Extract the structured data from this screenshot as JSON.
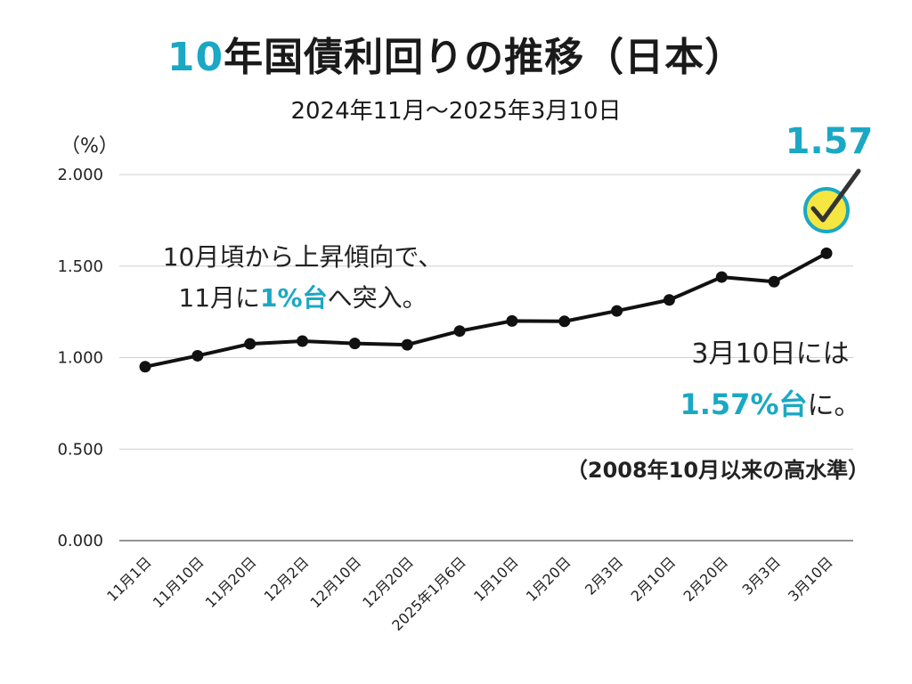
{
  "title": {
    "accent": "10",
    "rest": "年国債利回りの推移（日本）"
  },
  "subtitle": "2024年11月～2025年3月10日",
  "unit_label": "（%）",
  "callouts": {
    "trend_line1": "10月頃から上昇傾向で、",
    "trend_line2_pre": "11月に",
    "trend_line2_hl": "1%台",
    "trend_line2_post": "へ突入。",
    "latest_line1": "3月10日には",
    "latest_hl": "1.57%台",
    "latest_post": "に。",
    "record": "（2008年10月以来の高水準）",
    "peak_value": "1.57"
  },
  "colors": {
    "accent": "#1aa8c4",
    "line": "#111111",
    "badge": "#f5e642"
  },
  "icons": {
    "peak_marker": "check-icon"
  },
  "chart_data": {
    "type": "line",
    "categories": [
      "11月1日",
      "11月10日",
      "11月20日",
      "12月2日",
      "12月10日",
      "12月20日",
      "2025年1月6日",
      "1月10日",
      "1月20日",
      "2月3日",
      "2月10日",
      "2月20日",
      "3月3日",
      "3月10日"
    ],
    "series": [
      {
        "values": [
          0.95,
          1.01,
          1.075,
          1.09,
          1.077,
          1.07,
          1.145,
          1.2,
          1.198,
          1.255,
          1.315,
          1.44,
          1.415,
          1.57
        ]
      }
    ],
    "y_ticks": [
      "0.000",
      "0.500",
      "1.000",
      "1.500",
      "2.000"
    ],
    "ylim": [
      0,
      2
    ],
    "grid": true,
    "legend": "none"
  }
}
